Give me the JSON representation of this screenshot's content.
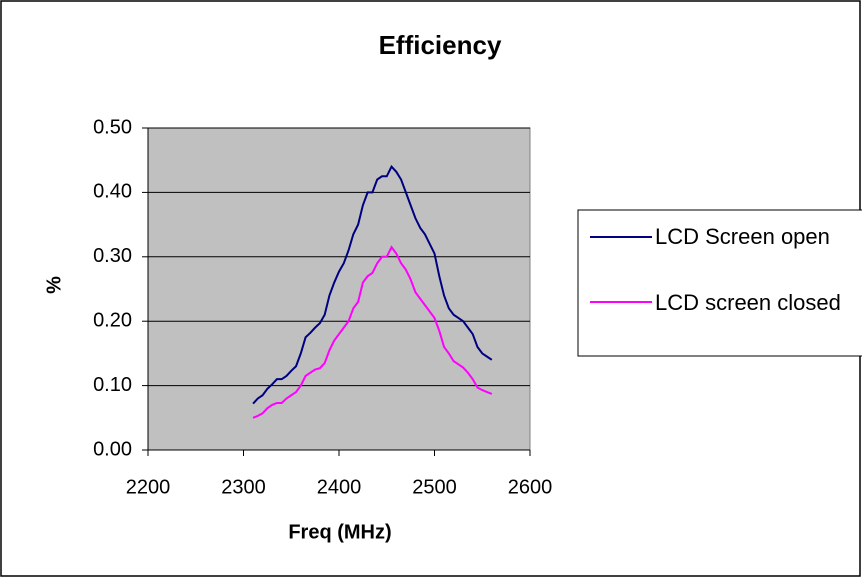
{
  "chart_data": {
    "type": "line",
    "title": "Efficiency",
    "x_label": "Freq (MHz)",
    "y_label": "%",
    "x": [
      2310,
      2315,
      2320,
      2325,
      2330,
      2335,
      2340,
      2345,
      2350,
      2355,
      2360,
      2365,
      2370,
      2375,
      2380,
      2385,
      2390,
      2395,
      2400,
      2405,
      2410,
      2415,
      2420,
      2425,
      2430,
      2435,
      2440,
      2445,
      2450,
      2455,
      2460,
      2465,
      2470,
      2475,
      2480,
      2485,
      2490,
      2495,
      2500,
      2505,
      2510,
      2515,
      2520,
      2525,
      2530,
      2535,
      2540,
      2545,
      2550,
      2555,
      2560
    ],
    "series": [
      {
        "name": "LCD Screen open",
        "color": "#000080",
        "values": [
          0.072,
          0.08,
          0.085,
          0.095,
          0.102,
          0.11,
          0.11,
          0.115,
          0.123,
          0.13,
          0.15,
          0.175,
          0.182,
          0.19,
          0.197,
          0.21,
          0.24,
          0.26,
          0.277,
          0.29,
          0.31,
          0.335,
          0.35,
          0.38,
          0.4,
          0.4,
          0.42,
          0.425,
          0.425,
          0.44,
          0.432,
          0.42,
          0.4,
          0.38,
          0.36,
          0.345,
          0.335,
          0.32,
          0.305,
          0.27,
          0.24,
          0.22,
          0.21,
          0.205,
          0.2,
          0.19,
          0.18,
          0.16,
          0.15,
          0.145,
          0.14
        ]
      },
      {
        "name": "LCD screen closed",
        "color": "#ff00ff",
        "values": [
          0.05,
          0.053,
          0.057,
          0.065,
          0.07,
          0.073,
          0.073,
          0.08,
          0.085,
          0.09,
          0.1,
          0.115,
          0.12,
          0.125,
          0.127,
          0.135,
          0.155,
          0.17,
          0.18,
          0.19,
          0.2,
          0.22,
          0.23,
          0.26,
          0.27,
          0.275,
          0.29,
          0.3,
          0.3,
          0.315,
          0.305,
          0.29,
          0.28,
          0.265,
          0.245,
          0.235,
          0.225,
          0.215,
          0.205,
          0.185,
          0.16,
          0.15,
          0.138,
          0.133,
          0.128,
          0.12,
          0.11,
          0.097,
          0.093,
          0.09,
          0.087
        ]
      }
    ],
    "xlim": [
      2200,
      2600
    ],
    "xticks": [
      2200,
      2300,
      2400,
      2500,
      2600
    ],
    "ylim": [
      0,
      0.5
    ],
    "yticks": [
      {
        "value": 0,
        "label": "0.00"
      },
      {
        "value": 0.1,
        "label": "0.10"
      },
      {
        "value": 0.2,
        "label": "0.20"
      },
      {
        "value": 0.3,
        "label": "0.30"
      },
      {
        "value": 0.4,
        "label": "0.40"
      },
      {
        "value": 0.5,
        "label": "0.50"
      }
    ],
    "grid": true,
    "legend": "right",
    "plot_background": "#c0c0c0"
  }
}
